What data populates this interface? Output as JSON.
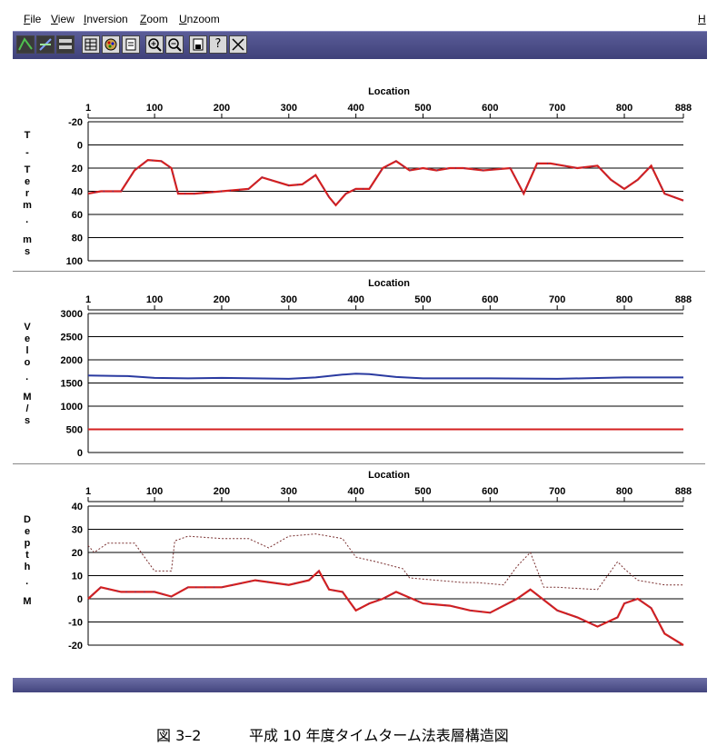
{
  "menu": {
    "items": [
      "File",
      "View",
      "Inversion",
      "Zoom",
      "Unzoom"
    ],
    "help": "H"
  },
  "toolbar": {
    "buttons": [
      "view-mode-1-icon",
      "view-mode-2-icon",
      "split-view-icon",
      "table-icon",
      "palette-icon",
      "document-icon",
      "zoom-in-icon",
      "zoom-out-icon",
      "save-icon",
      "help-icon",
      "close-icon"
    ]
  },
  "colors": {
    "primary": "#d42020",
    "secondary": "#2a3aa0",
    "grid": "#000000"
  },
  "chart_data": [
    {
      "type": "line",
      "xlabel": "Location",
      "ylabel": "T - Term · ms",
      "x_ticks": [
        "1",
        "100",
        "200",
        "300",
        "400",
        "500",
        "600",
        "700",
        "800",
        "888"
      ],
      "y_ticks": [
        "-20",
        "0",
        "20",
        "40",
        "60",
        "80",
        "100"
      ],
      "xlim": [
        1,
        888
      ],
      "ylim": [
        -20,
        100
      ],
      "y_inverted": true,
      "series": [
        {
          "values_x": [
            1,
            20,
            50,
            70,
            90,
            110,
            125,
            135,
            160,
            200,
            240,
            260,
            300,
            320,
            340,
            360,
            370,
            385,
            400,
            420,
            440,
            460,
            480,
            500,
            520,
            540,
            560,
            590,
            630,
            650,
            670,
            690,
            710,
            730,
            760,
            780,
            800,
            820,
            840,
            860,
            888
          ],
          "values_y": [
            42,
            40,
            40,
            22,
            13,
            14,
            20,
            42,
            42,
            40,
            38,
            28,
            35,
            34,
            26,
            45,
            52,
            42,
            38,
            38,
            20,
            14,
            22,
            20,
            22,
            20,
            20,
            22,
            20,
            42,
            16,
            16,
            18,
            20,
            18,
            30,
            38,
            30,
            18,
            42,
            48
          ]
        }
      ]
    },
    {
      "type": "line",
      "xlabel": "Location",
      "ylabel": "Velo · M/s",
      "x_ticks": [
        "1",
        "100",
        "200",
        "300",
        "400",
        "500",
        "600",
        "700",
        "800",
        "888"
      ],
      "y_ticks": [
        "3000",
        "2500",
        "2000",
        "1500",
        "1000",
        "500",
        "0"
      ],
      "xlim": [
        1,
        888
      ],
      "ylim": [
        0,
        3000
      ],
      "series": [
        {
          "values_x": [
            1,
            60,
            100,
            150,
            200,
            250,
            300,
            340,
            380,
            400,
            420,
            460,
            500,
            600,
            700,
            800,
            888
          ],
          "values_y": [
            1660,
            1650,
            1610,
            1600,
            1610,
            1600,
            1590,
            1620,
            1680,
            1700,
            1690,
            1630,
            1600,
            1600,
            1590,
            1620,
            1620
          ]
        },
        {
          "values_x": [
            1,
            888
          ],
          "values_y": [
            500,
            500
          ]
        }
      ]
    },
    {
      "type": "line",
      "xlabel": "Location",
      "ylabel": "Depth · M",
      "x_ticks": [
        "1",
        "100",
        "200",
        "300",
        "400",
        "500",
        "600",
        "700",
        "800",
        "888"
      ],
      "y_ticks": [
        "40",
        "30",
        "20",
        "10",
        "0",
        "-10",
        "-20"
      ],
      "xlim": [
        1,
        888
      ],
      "ylim": [
        -20,
        40
      ],
      "series": [
        {
          "values_x": [
            1,
            10,
            30,
            70,
            80,
            100,
            125,
            130,
            150,
            200,
            240,
            270,
            300,
            340,
            380,
            400,
            430,
            470,
            480,
            520,
            560,
            580,
            620,
            640,
            660,
            680,
            700,
            760,
            790,
            800,
            820,
            860,
            888
          ],
          "values_y": [
            23,
            20,
            24,
            24,
            20,
            12,
            12,
            25,
            27,
            26,
            26,
            22,
            27,
            28,
            26,
            18,
            16,
            13,
            9,
            8,
            7,
            7,
            6,
            14,
            20,
            5,
            5,
            4,
            16,
            13,
            8,
            6,
            6
          ]
        },
        {
          "values_x": [
            1,
            20,
            50,
            100,
            125,
            150,
            200,
            250,
            300,
            330,
            345,
            360,
            380,
            400,
            420,
            440,
            460,
            500,
            540,
            570,
            600,
            640,
            660,
            700,
            730,
            760,
            790,
            800,
            820,
            840,
            860,
            888
          ],
          "values_y": [
            0,
            5,
            3,
            3,
            1,
            5,
            5,
            8,
            6,
            8,
            12,
            4,
            3,
            -5,
            -2,
            0,
            3,
            -2,
            -3,
            -5,
            -6,
            0,
            4,
            -5,
            -8,
            -12,
            -8,
            -2,
            0,
            -4,
            -15,
            -20
          ]
        }
      ]
    }
  ],
  "caption": {
    "figure_no": "図 3–2",
    "title": "平成 10 年度タイムターム法表層構造図"
  }
}
